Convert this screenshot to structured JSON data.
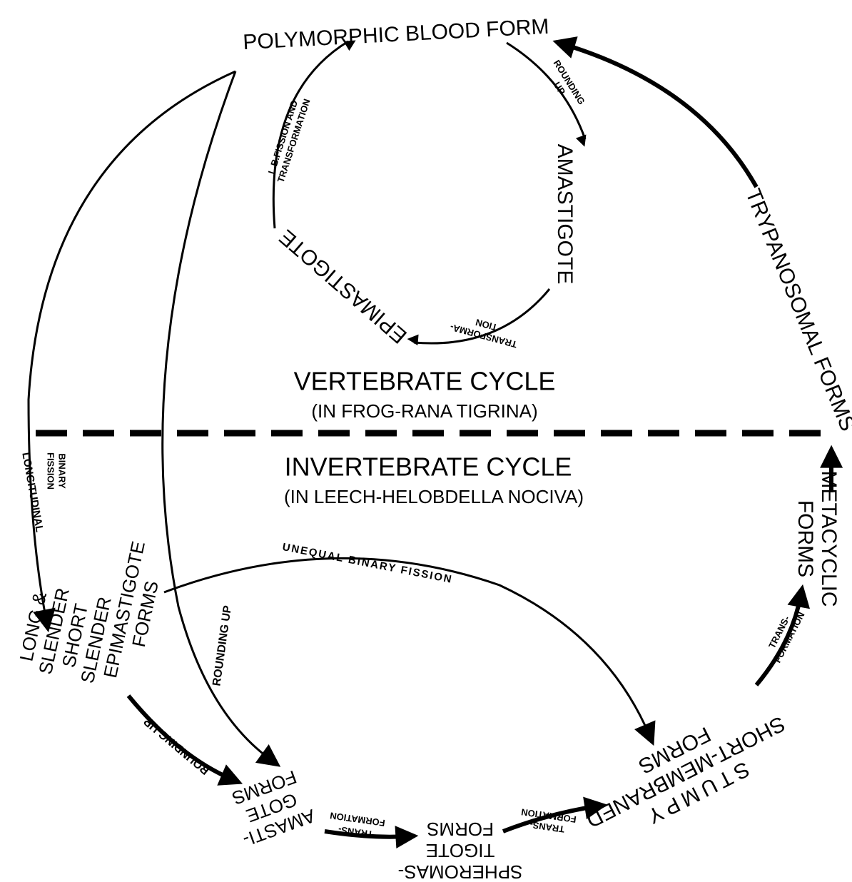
{
  "nodes": [
    {
      "label": [
        "POLYMORPHIC BLOOD FORM"
      ]
    },
    {
      "label": [
        "AMASTIGOTE"
      ]
    },
    {
      "label": [
        "EPIMASTIGOTE"
      ]
    },
    {
      "label": [
        "TRYPANOSOMAL FORMS"
      ]
    },
    {
      "label": [
        "METACYCLIC",
        "FORMS"
      ]
    },
    {
      "label": [
        "STUMPY",
        "SHORT-MEMBRANED",
        "FORMS"
      ]
    },
    {
      "label": [
        "SPHEROMAS-",
        "TIGOTE",
        "FORMS"
      ]
    },
    {
      "label": [
        "AMASTI-",
        "GOTE",
        "FORMS"
      ]
    },
    {
      "label": [
        "LONG &",
        "SLENDER",
        "SHORT",
        "SLENDER",
        "EPIMASTIGOTE",
        "FORMS"
      ]
    }
  ],
  "edges": [
    {
      "label": [
        "ROUNDING",
        "UP"
      ]
    },
    {
      "label": [
        "TRANSFORMA-",
        "TION"
      ]
    },
    {
      "label": [
        "L.B.FISSION AND",
        "TRANSFORMATION"
      ]
    },
    {
      "label": [
        "TRANS-",
        "FORMATION"
      ]
    },
    {
      "label": [
        "TRANS-",
        "FORMATION"
      ]
    },
    {
      "label": [
        "TRANS-",
        "FORMATION"
      ]
    },
    {
      "label": [
        "ROUNDING UP"
      ]
    },
    {
      "label": [
        "ROUNDING UP"
      ]
    },
    {
      "label": [
        "LONGITUDINAL",
        "BINARY",
        "FISSION"
      ]
    },
    {
      "label": [
        "UNEQUAL BINARY FISSION"
      ]
    }
  ],
  "cycles": [
    {
      "title": "VERTEBRATE CYCLE",
      "subtitle": "(IN FROG-RANA TIGRINA)"
    },
    {
      "title": "INVERTEBRATE CYCLE",
      "subtitle": "(IN LEECH-HELOBDELLA NOCIVA)"
    }
  ]
}
